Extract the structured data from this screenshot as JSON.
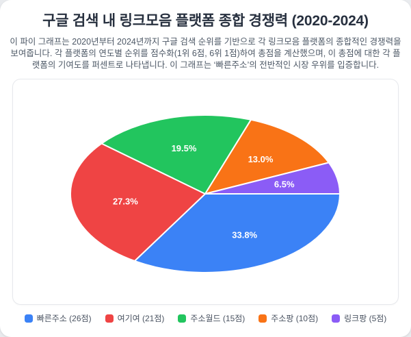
{
  "page": {
    "description": "이 파이 그래프는 2020년부터 2024년까지 구글 검색 순위를 기반으로 각 링크모음 플랫폼의 종합적인 경쟁력을 보여줍니다. 각 플랫폼의 연도별 순위를 점수화(1위 6점, 6위 1점)하여 총점을 계산했으며, 이 총점에 대한 각 플랫폼의 기여도를 퍼센트로 나타냅니다. 이 그래프는 ‘빠른주소’의 전반적인 시장 우위를 입증합니다."
  },
  "chart_data": {
    "type": "pie",
    "title": "구글 검색 내 링크모음 플랫폼 종합 경쟁력 (2020-2024)",
    "categories": [
      "빠른주소",
      "여기여",
      "주소월드",
      "주소팡",
      "링크팡"
    ],
    "values": [
      26,
      21,
      15,
      10,
      5
    ],
    "unit": "점",
    "start_angle_deg": 0,
    "direction": "clockwise",
    "legend_position": "bottom",
    "label_color": "#ffffff",
    "slices": [
      {
        "name": "빠른주소",
        "score": 26,
        "percent": 33.8,
        "percent_label": "33.8%",
        "legend_label": "빠른주소 (26점)",
        "color": "#3b82f6"
      },
      {
        "name": "여기여",
        "score": 21,
        "percent": 27.3,
        "percent_label": "27.3%",
        "legend_label": "여기여 (21점)",
        "color": "#ef4444"
      },
      {
        "name": "주소월드",
        "score": 15,
        "percent": 19.5,
        "percent_label": "19.5%",
        "legend_label": "주소월드 (15점)",
        "color": "#22c55e"
      },
      {
        "name": "주소팡",
        "score": 10,
        "percent": 13.0,
        "percent_label": "13.0%",
        "legend_label": "주소팡 (10점)",
        "color": "#f97316"
      },
      {
        "name": "링크팡",
        "score": 5,
        "percent": 6.5,
        "percent_label": "6.5%",
        "legend_label": "링크팡 (5점)",
        "color": "#8b5cf6"
      }
    ]
  }
}
